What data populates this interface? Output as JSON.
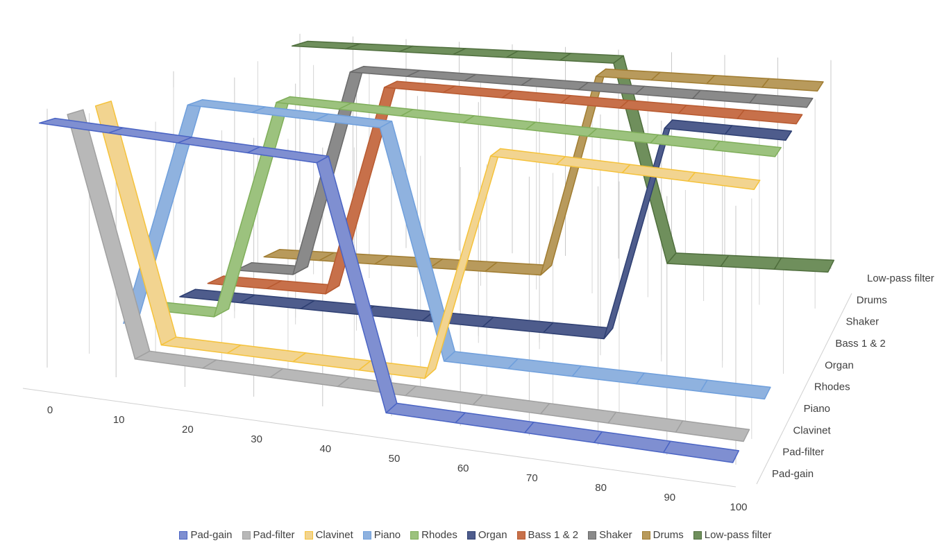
{
  "chart_data": {
    "type": "line",
    "subtype": "3d-line",
    "title": "",
    "xlabel": "",
    "ylabel": "",
    "x": [
      0,
      10,
      20,
      30,
      40,
      50,
      60,
      70,
      80,
      90,
      100
    ],
    "depth_categories": [
      "Pad-gain",
      "Pad-filter",
      "Clavinet",
      "Piano",
      "Rhodes",
      "Organ",
      "Bass 1 & 2",
      "Shaker",
      "Drums",
      "Low-pass filter"
    ],
    "ylim": [
      0,
      1
    ],
    "grid": true,
    "legend_position": "bottom",
    "series": [
      {
        "name": "Pad-gain",
        "color": "#7f8fd1",
        "edge": "#4a64c4",
        "values": [
          1,
          1,
          1,
          1,
          1,
          0,
          0,
          0,
          0,
          0,
          0
        ]
      },
      {
        "name": "Pad-filter",
        "color": "#b8b8b8",
        "edge": "#a0a0a0",
        "values": [
          1,
          0,
          0,
          0,
          0,
          0,
          0,
          0,
          0,
          0,
          0
        ]
      },
      {
        "name": "Clavinet",
        "color": "#f2d490",
        "edge": "#f5c23a",
        "values": [
          1,
          0,
          0,
          0,
          0,
          0,
          1,
          1,
          1,
          1,
          1
        ]
      },
      {
        "name": "Piano",
        "color": "#8fb2df",
        "edge": "#6f9fdc",
        "values": [
          0,
          1,
          1,
          1,
          1,
          0,
          0,
          0,
          0,
          0,
          0
        ]
      },
      {
        "name": "Rhodes",
        "color": "#9cc27e",
        "edge": "#7fae5a",
        "values": [
          0,
          0,
          1,
          1,
          1,
          1,
          1,
          1,
          1,
          1,
          1
        ]
      },
      {
        "name": "Organ",
        "color": "#4e5c8c",
        "edge": "#2e3f72",
        "values": [
          0,
          0,
          0,
          0,
          0,
          0,
          0,
          0,
          1,
          1,
          1
        ]
      },
      {
        "name": "Bass 1 & 2",
        "color": "#c7704a",
        "edge": "#b85a30",
        "values": [
          0,
          0,
          0,
          1,
          1,
          1,
          1,
          1,
          1,
          1,
          1
        ]
      },
      {
        "name": "Shaker",
        "color": "#8a8a8a",
        "edge": "#6a6a6a",
        "values": [
          0,
          0,
          1,
          1,
          1,
          1,
          1,
          1,
          1,
          1,
          1
        ]
      },
      {
        "name": "Drums",
        "color": "#b89a5c",
        "edge": "#a07c30",
        "values": [
          0,
          0,
          0,
          0,
          0,
          0,
          1,
          1,
          1,
          1,
          1
        ]
      },
      {
        "name": "Low-pass filter",
        "color": "#6f8f5c",
        "edge": "#4f6e3d",
        "values": [
          1,
          1,
          1,
          1,
          1,
          1,
          1,
          0,
          0,
          0,
          0
        ]
      }
    ]
  }
}
